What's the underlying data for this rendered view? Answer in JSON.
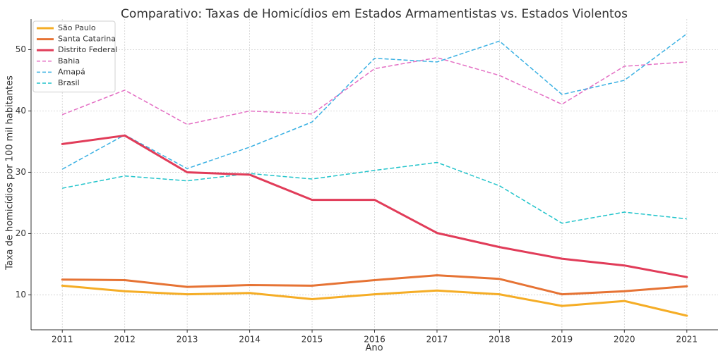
{
  "chart_data": {
    "type": "line",
    "title": "Comparativo: Taxas de Homicídios em Estados Armamentistas vs. Estados Violentos",
    "xlabel": "Ano",
    "ylabel": "Taxa de homicídios por 100 mil habitantes",
    "x": [
      2011,
      2012,
      2013,
      2014,
      2015,
      2016,
      2017,
      2018,
      2019,
      2020,
      2021
    ],
    "x_tick_labels": [
      "2011",
      "2012",
      "2013",
      "2014",
      "2015",
      "2016",
      "2017",
      "2018",
      "2019",
      "2020",
      "2021"
    ],
    "xlim": [
      2010.5,
      2021.5
    ],
    "ylim": [
      4.3,
      55.0
    ],
    "y_ticks": [
      10,
      20,
      30,
      40,
      50
    ],
    "y_tick_labels": [
      "10",
      "20",
      "30",
      "40",
      "50"
    ],
    "grid": true,
    "legend_position": "top-left",
    "series": [
      {
        "name": "São Paulo",
        "color": "#f5ad26",
        "style": "solid",
        "values": [
          11.5,
          10.6,
          10.1,
          10.3,
          9.3,
          10.1,
          10.7,
          10.1,
          8.2,
          9.0,
          6.6
        ]
      },
      {
        "name": "Santa Catarina",
        "color": "#e67334",
        "style": "solid",
        "values": [
          12.5,
          12.4,
          11.3,
          11.6,
          11.5,
          12.4,
          13.2,
          12.6,
          10.1,
          10.6,
          11.4
        ]
      },
      {
        "name": "Distrito Federal",
        "color": "#e13c59",
        "style": "solid",
        "values": [
          34.6,
          36.0,
          30.0,
          29.6,
          25.5,
          25.5,
          20.1,
          17.8,
          15.9,
          14.8,
          12.9
        ]
      },
      {
        "name": "Bahia",
        "color": "#e46fc4",
        "style": "dashed",
        "values": [
          39.4,
          43.4,
          37.8,
          40.0,
          39.5,
          46.9,
          48.7,
          45.8,
          41.1,
          47.3,
          48.0
        ]
      },
      {
        "name": "Amapá",
        "color": "#3bb1e3",
        "style": "dashed",
        "values": [
          30.5,
          36.1,
          30.6,
          34.1,
          38.2,
          48.6,
          48.0,
          51.4,
          42.7,
          45.0,
          52.6
        ]
      },
      {
        "name": "Brasil",
        "color": "#22c4cb",
        "style": "dashed",
        "values": [
          27.4,
          29.4,
          28.6,
          29.8,
          28.9,
          30.3,
          31.6,
          27.8,
          21.7,
          23.5,
          22.4
        ]
      }
    ]
  }
}
